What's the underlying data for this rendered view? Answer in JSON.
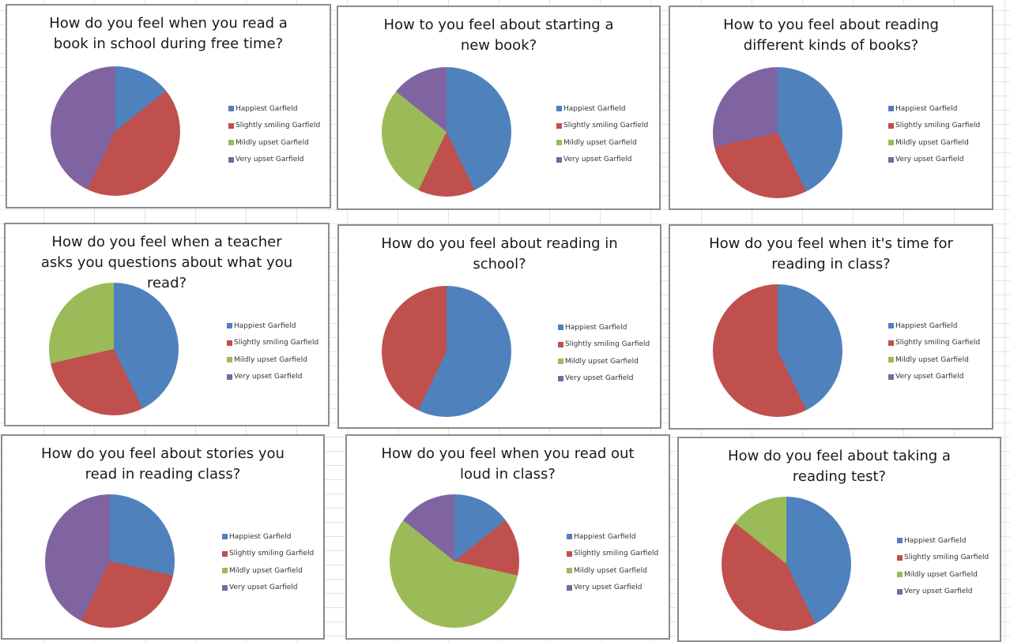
{
  "legend_labels": [
    "Happiest Garfield",
    "Slightly smiling Garfield",
    "Mildly upset Garfield",
    "Very upset Garfield"
  ],
  "colors": {
    "happiest": "#4F81BD",
    "slightly_smiling": "#C0504D",
    "mildly_upset": "#9BBB59",
    "very_upset": "#8064A2"
  },
  "charts": [
    {
      "title": "How do you feel when you read a book in school during free time?",
      "values": [
        1,
        3,
        0,
        3
      ]
    },
    {
      "title": "How to you feel about starting a new book?",
      "values": [
        3,
        1,
        2,
        1
      ]
    },
    {
      "title": "How to you feel about reading different kinds of books?",
      "values": [
        3,
        2,
        0,
        2
      ]
    },
    {
      "title": "How do you feel when a teacher asks you questions about what you read?",
      "values": [
        3,
        2,
        2,
        0
      ]
    },
    {
      "title": "How do you feel about reading in school?",
      "values": [
        4,
        3,
        0,
        0
      ]
    },
    {
      "title": "How do you feel when it's time for reading in class?",
      "values": [
        3,
        4,
        0,
        0
      ]
    },
    {
      "title": "How do you feel about stories you read in reading class?",
      "values": [
        2,
        2,
        0,
        3
      ]
    },
    {
      "title": "How do you feel when you read out loud in class?",
      "values": [
        1,
        1,
        4,
        1
      ]
    },
    {
      "title": "How do you feel about taking a reading test?",
      "values": [
        3,
        3,
        1,
        0
      ]
    }
  ],
  "chart_data": [
    {
      "type": "pie",
      "title": "How do you feel when you read a book in school during free time?",
      "categories": [
        "Happiest Garfield",
        "Slightly smiling Garfield",
        "Mildly upset Garfield",
        "Very upset Garfield"
      ],
      "values": [
        1,
        3,
        0,
        3
      ],
      "legend_position": "right"
    },
    {
      "type": "pie",
      "title": "How to you feel about starting a new book?",
      "categories": [
        "Happiest Garfield",
        "Slightly smiling Garfield",
        "Mildly upset Garfield",
        "Very upset Garfield"
      ],
      "values": [
        3,
        1,
        2,
        1
      ],
      "legend_position": "right"
    },
    {
      "type": "pie",
      "title": "How to you feel about reading different kinds of books?",
      "categories": [
        "Happiest Garfield",
        "Slightly smiling Garfield",
        "Mildly upset Garfield",
        "Very upset Garfield"
      ],
      "values": [
        3,
        2,
        0,
        2
      ],
      "legend_position": "right"
    },
    {
      "type": "pie",
      "title": "How do you feel when a teacher asks you questions about what you read?",
      "categories": [
        "Happiest Garfield",
        "Slightly smiling Garfield",
        "Mildly upset Garfield",
        "Very upset Garfield"
      ],
      "values": [
        3,
        2,
        2,
        0
      ],
      "legend_position": "right"
    },
    {
      "type": "pie",
      "title": "How do you feel about reading in school?",
      "categories": [
        "Happiest Garfield",
        "Slightly smiling Garfield",
        "Mildly upset Garfield",
        "Very upset Garfield"
      ],
      "values": [
        4,
        3,
        0,
        0
      ],
      "legend_position": "right"
    },
    {
      "type": "pie",
      "title": "How do you feel when it's time for reading in class?",
      "categories": [
        "Happiest Garfield",
        "Slightly smiling Garfield",
        "Mildly upset Garfield",
        "Very upset Garfield"
      ],
      "values": [
        3,
        4,
        0,
        0
      ],
      "legend_position": "right"
    },
    {
      "type": "pie",
      "title": "How do you feel about stories you read in reading class?",
      "categories": [
        "Happiest Garfield",
        "Slightly smiling Garfield",
        "Mildly upset Garfield",
        "Very upset Garfield"
      ],
      "values": [
        2,
        2,
        0,
        3
      ],
      "legend_position": "right"
    },
    {
      "type": "pie",
      "title": "How do you feel when you read out loud in class?",
      "categories": [
        "Happiest Garfield",
        "Slightly smiling Garfield",
        "Mildly upset Garfield",
        "Very upset Garfield"
      ],
      "values": [
        1,
        1,
        4,
        1
      ],
      "legend_position": "right"
    },
    {
      "type": "pie",
      "title": "How do you feel about taking a reading test?",
      "categories": [
        "Happiest Garfield",
        "Slightly smiling Garfield",
        "Mildly upset Garfield",
        "Very upset Garfield"
      ],
      "values": [
        3,
        3,
        1,
        0
      ],
      "legend_position": "right"
    }
  ]
}
